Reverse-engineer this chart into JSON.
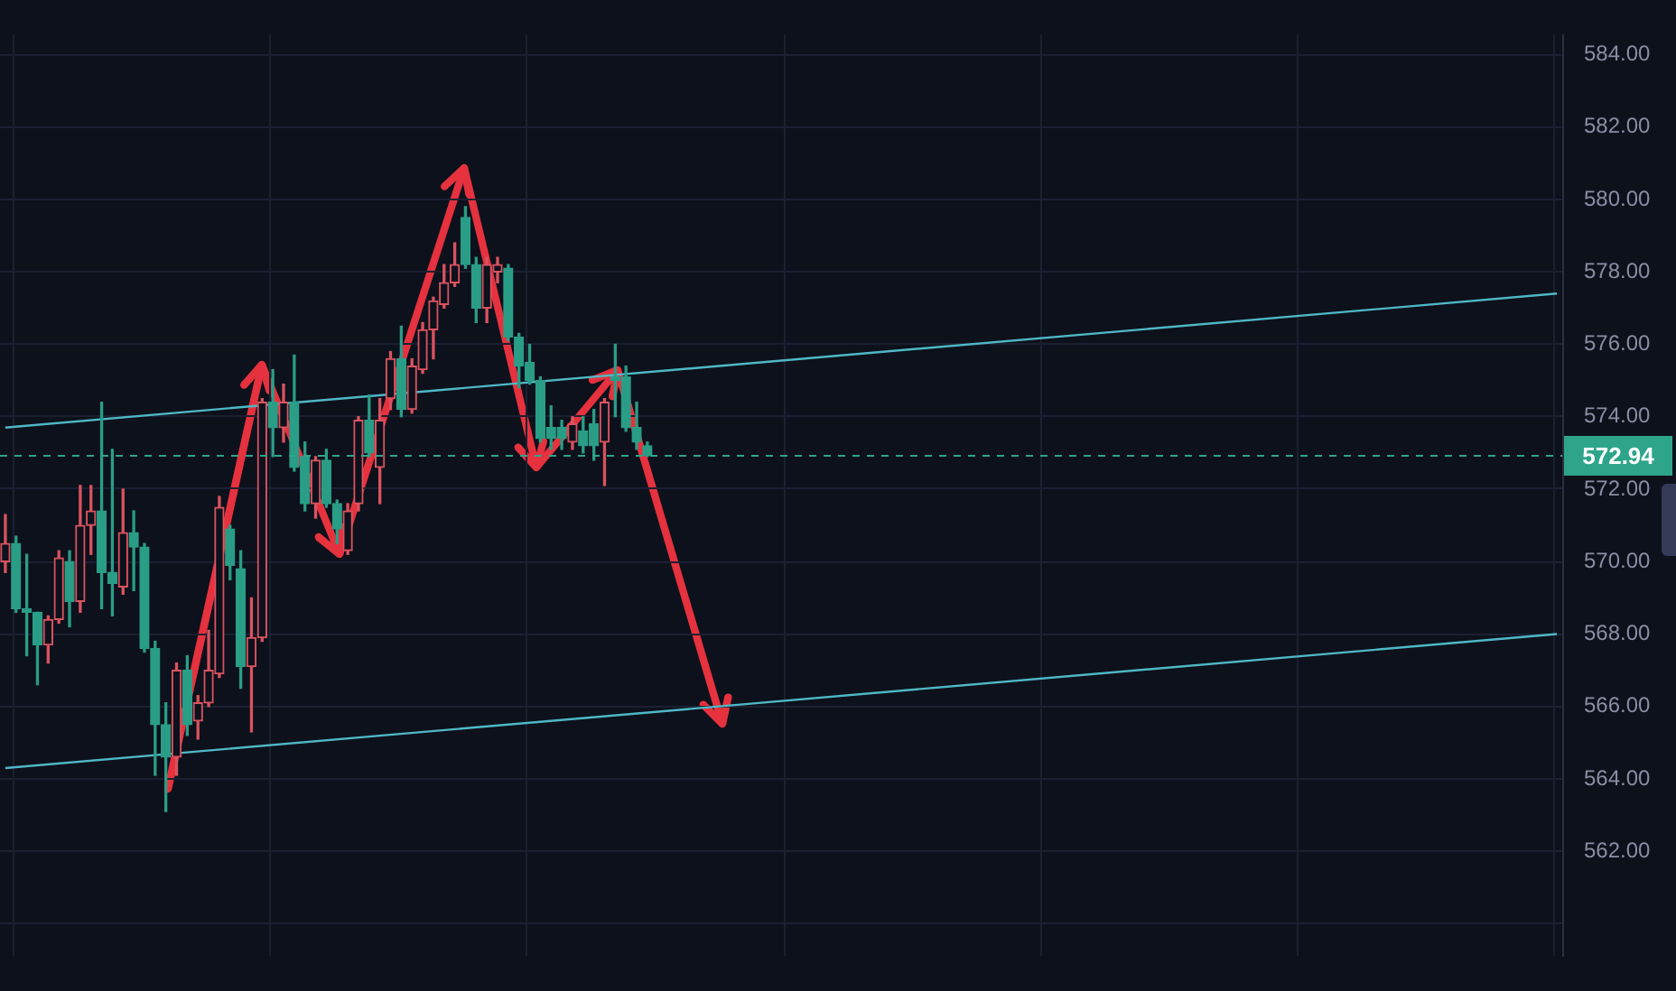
{
  "chart_data": {
    "type": "candlestick",
    "categories": [
      null,
      null,
      null,
      null,
      null,
      null,
      null,
      null,
      null,
      null,
      null,
      null,
      null,
      null,
      null,
      null,
      null,
      null,
      null,
      null,
      null,
      null,
      null,
      null,
      null,
      null,
      null,
      null,
      null,
      null,
      null,
      null,
      null,
      null,
      null,
      null,
      null,
      null,
      null,
      null,
      null,
      null,
      null,
      null,
      null,
      null,
      null,
      null,
      null,
      null,
      null,
      null,
      null,
      null,
      null,
      null,
      null,
      null,
      null,
      null,
      null,
      null,
      null,
      null,
      null,
      null,
      null,
      null,
      null,
      null,
      null,
      null,
      null,
      null,
      null,
      null,
      null,
      null,
      null,
      null,
      null,
      null,
      null,
      null,
      null,
      null,
      null,
      null,
      null,
      null,
      null,
      null,
      null,
      null,
      null,
      null,
      null,
      null,
      null,
      null,
      null,
      null,
      null,
      null,
      null,
      null,
      null,
      null,
      null,
      null,
      null,
      null,
      null,
      null,
      null,
      null,
      null,
      null,
      null,
      null,
      null,
      null,
      null,
      null,
      null,
      null,
      null,
      null,
      null,
      null,
      null,
      null,
      null,
      null,
      null,
      null,
      null,
      null,
      null,
      null,
      null,
      null,
      null,
      null,
      null,
      null
    ],
    "ohlc": [
      [
        570.0,
        571.3,
        569.7,
        570.5
      ],
      [
        570.5,
        570.7,
        568.6,
        568.7
      ],
      [
        568.7,
        570.2,
        567.4,
        568.6
      ],
      [
        568.6,
        568.6,
        566.6,
        567.7
      ],
      [
        567.7,
        568.5,
        567.2,
        568.4
      ],
      [
        568.4,
        570.3,
        568.3,
        570.1
      ],
      [
        570.0,
        570.3,
        568.2,
        568.9
      ],
      [
        568.9,
        572.1,
        568.6,
        571.0
      ],
      [
        571.0,
        572.1,
        570.2,
        571.4
      ],
      [
        571.4,
        574.4,
        568.7,
        569.7
      ],
      [
        569.7,
        573.1,
        568.5,
        569.4
      ],
      [
        569.3,
        572.0,
        569.1,
        570.8
      ],
      [
        570.8,
        571.4,
        569.2,
        570.4
      ],
      [
        570.4,
        570.5,
        567.5,
        567.6
      ],
      [
        567.6,
        567.8,
        564.1,
        565.5
      ],
      [
        565.5,
        566.1,
        563.1,
        564.6
      ],
      [
        564.6,
        567.2,
        564.1,
        567.0
      ],
      [
        567.0,
        567.4,
        565.2,
        565.5
      ],
      [
        565.6,
        566.3,
        565.1,
        566.1
      ],
      [
        566.1,
        568.1,
        566.0,
        567.0
      ],
      [
        566.9,
        571.8,
        566.8,
        571.5
      ],
      [
        570.9,
        571.0,
        569.5,
        569.9
      ],
      [
        569.8,
        570.3,
        566.5,
        567.1
      ],
      [
        567.1,
        569.0,
        565.3,
        567.9
      ],
      [
        567.9,
        574.5,
        567.8,
        574.4
      ],
      [
        574.4,
        575.3,
        572.9,
        573.7
      ],
      [
        573.7,
        574.9,
        573.3,
        574.4
      ],
      [
        574.4,
        575.7,
        572.5,
        572.6
      ],
      [
        572.9,
        573.3,
        571.4,
        571.6
      ],
      [
        571.6,
        572.9,
        571.2,
        572.8
      ],
      [
        572.8,
        573.1,
        571.5,
        571.6
      ],
      [
        571.6,
        571.7,
        570.5,
        570.9
      ],
      [
        570.3,
        571.6,
        570.2,
        571.4
      ],
      [
        571.6,
        574.0,
        571.4,
        573.9
      ],
      [
        573.9,
        574.6,
        572.9,
        573.0
      ],
      [
        572.6,
        574.5,
        571.6,
        573.9
      ],
      [
        574.5,
        575.8,
        574.2,
        575.6
      ],
      [
        575.6,
        576.5,
        574.0,
        574.2
      ],
      [
        574.2,
        575.6,
        574.1,
        575.4
      ],
      [
        575.3,
        576.6,
        575.2,
        576.4
      ],
      [
        576.4,
        577.3,
        575.6,
        577.2
      ],
      [
        577.1,
        578.2,
        577.0,
        577.7
      ],
      [
        577.7,
        578.8,
        577.6,
        578.2
      ],
      [
        579.5,
        579.8,
        578.1,
        578.2
      ],
      [
        578.2,
        578.4,
        576.6,
        577.0
      ],
      [
        577.0,
        578.4,
        576.6,
        578.2
      ],
      [
        578.0,
        578.4,
        577.7,
        578.2
      ],
      [
        578.1,
        578.2,
        576.1,
        576.2
      ],
      [
        576.2,
        576.3,
        574.8,
        575.4
      ],
      [
        575.5,
        576.0,
        574.9,
        575.0
      ],
      [
        575.0,
        575.1,
        573.3,
        573.4
      ],
      [
        573.7,
        574.3,
        573.1,
        573.4
      ],
      [
        573.7,
        573.9,
        573.1,
        573.4
      ],
      [
        573.3,
        574.0,
        573.1,
        573.8
      ],
      [
        573.6,
        574.0,
        573.0,
        573.2
      ],
      [
        573.8,
        574.2,
        572.8,
        573.2
      ],
      [
        573.3,
        574.5,
        572.1,
        574.4
      ],
      [
        575.1,
        576.0,
        574.0,
        575.0
      ],
      [
        575.1,
        575.4,
        573.6,
        573.7
      ],
      [
        573.7,
        574.4,
        573.1,
        573.3
      ],
      [
        573.2,
        573.3,
        572.9,
        572.94
      ],
      null,
      null,
      null,
      null,
      null,
      null,
      null,
      null,
      null,
      null,
      null,
      null,
      null,
      null,
      null,
      null,
      null,
      null,
      null,
      null,
      null,
      null,
      null,
      null,
      null,
      null,
      null,
      null,
      null,
      null,
      null,
      null,
      null,
      null,
      null,
      null,
      null,
      null,
      null,
      null,
      null,
      null,
      null,
      null,
      null,
      null,
      null,
      null,
      null,
      null,
      null,
      null,
      null,
      null,
      null,
      null,
      null,
      null,
      null,
      null,
      null,
      null,
      null,
      null,
      null,
      null,
      null,
      null,
      null,
      null,
      null,
      null,
      null,
      null,
      null,
      null,
      null,
      null,
      null,
      null,
      null,
      null,
      null,
      null,
      null
    ],
    "colors": [
      "#d9535f",
      "#2a9d86",
      "#2a9d86",
      "#2a9d86",
      "#d9535f",
      "#d9535f",
      "#2a9d86",
      "#d9535f",
      "#d9535f",
      "#2a9d86",
      "#2a9d86",
      "#d9535f",
      "#2a9d86",
      "#2a9d86",
      "#2a9d86",
      "#2a9d86",
      "#d9535f",
      "#2a9d86",
      "#d9535f",
      "#d9535f",
      "#d9535f",
      "#2a9d86",
      "#2a9d86",
      "#d9535f",
      "#d9535f",
      "#2a9d86",
      "#d9535f",
      "#2a9d86",
      "#2a9d86",
      "#d9535f",
      "#2a9d86",
      "#2a9d86",
      "#d9535f",
      "#d9535f",
      "#2a9d86",
      "#d9535f",
      "#d9535f",
      "#2a9d86",
      "#d9535f",
      "#d9535f",
      "#d9535f",
      "#d9535f",
      "#d9535f",
      "#2a9d86",
      "#2a9d86",
      "#d9535f",
      "#d9535f",
      "#2a9d86",
      "#2a9d86",
      "#2a9d86",
      "#2a9d86",
      "#2a9d86",
      "#2a9d86",
      "#d9535f",
      "#2a9d86",
      "#2a9d86",
      "#d9535f",
      "#2a9d86",
      "#2a9d86",
      "#2a9d86",
      "#2a9d86",
      null,
      null,
      null,
      null,
      null,
      null,
      null,
      null,
      null,
      null,
      null,
      null,
      null,
      null,
      null,
      null,
      null,
      null,
      null,
      null,
      null,
      null,
      null,
      null,
      null,
      null,
      null,
      null,
      null,
      null,
      null,
      null,
      null,
      null,
      null,
      null,
      null,
      null,
      null,
      null,
      null,
      null,
      null,
      null,
      null,
      null,
      null,
      null,
      null,
      null,
      null,
      null,
      null,
      null,
      null,
      null,
      null,
      null,
      null,
      null,
      null,
      null,
      null,
      null,
      null,
      null,
      null,
      null,
      null,
      null,
      null,
      null,
      null,
      null,
      null,
      null,
      null,
      null,
      null,
      null,
      null,
      null,
      null,
      null,
      null
    ],
    "series": [
      {
        "type": "line",
        "color": "#4fb8c6",
        "values": [
          573.7,
          null,
          null,
          null,
          null,
          null,
          null,
          null,
          null,
          null,
          null,
          null,
          null,
          null,
          null,
          null,
          null,
          null,
          null,
          null,
          null,
          null,
          null,
          null,
          null,
          null,
          null,
          null,
          null,
          null,
          null,
          null,
          null,
          null,
          null,
          null,
          null,
          null,
          null,
          null,
          null,
          null,
          null,
          null,
          null,
          null,
          null,
          null,
          null,
          null,
          null,
          null,
          null,
          null,
          null,
          null,
          null,
          null,
          null,
          null,
          null,
          null,
          null,
          null,
          null,
          null,
          null,
          null,
          null,
          null,
          null,
          null,
          null,
          null,
          null,
          null,
          null,
          null,
          null,
          null,
          null,
          null,
          null,
          null,
          null,
          null,
          null,
          null,
          null,
          null,
          null,
          null,
          null,
          null,
          null,
          null,
          null,
          null,
          null,
          null,
          null,
          null,
          null,
          null,
          null,
          null,
          null,
          null,
          null,
          null,
          null,
          null,
          null,
          null,
          null,
          null,
          null,
          null,
          null,
          null,
          null,
          null,
          null,
          null,
          null,
          null,
          null,
          null,
          null,
          null,
          null,
          null,
          null,
          null,
          null,
          null,
          null,
          null,
          null,
          null,
          null,
          null,
          null,
          null,
          null,
          577.4
        ]
      },
      {
        "type": "line",
        "color": "#4fb8c6",
        "values": [
          564.3,
          null,
          null,
          null,
          null,
          null,
          null,
          null,
          null,
          null,
          null,
          null,
          null,
          null,
          null,
          null,
          null,
          null,
          null,
          null,
          null,
          null,
          null,
          null,
          null,
          null,
          null,
          null,
          null,
          null,
          null,
          null,
          null,
          null,
          null,
          null,
          null,
          null,
          null,
          null,
          null,
          null,
          null,
          null,
          null,
          null,
          null,
          null,
          null,
          null,
          null,
          null,
          null,
          null,
          null,
          null,
          null,
          null,
          null,
          null,
          null,
          null,
          null,
          null,
          null,
          null,
          null,
          null,
          null,
          null,
          null,
          null,
          null,
          null,
          null,
          null,
          null,
          null,
          null,
          null,
          null,
          null,
          null,
          null,
          null,
          null,
          null,
          null,
          null,
          null,
          null,
          null,
          null,
          null,
          null,
          null,
          null,
          null,
          null,
          null,
          null,
          null,
          null,
          null,
          null,
          null,
          null,
          null,
          null,
          null,
          null,
          null,
          null,
          null,
          null,
          null,
          null,
          null,
          null,
          null,
          null,
          null,
          null,
          null,
          null,
          null,
          null,
          null,
          null,
          null,
          null,
          null,
          null,
          null,
          null,
          null,
          null,
          null,
          null,
          null,
          null,
          null,
          null,
          null,
          null,
          568.0
        ]
      }
    ],
    "ylim": [
      559.1,
      584.55
    ],
    "yticks": [
      {
        "value": 560,
        "label": null
      },
      {
        "value": 562,
        "label": "562.00"
      },
      {
        "value": 564,
        "label": "564.00"
      },
      {
        "value": 566,
        "label": "566.00"
      },
      {
        "value": 568,
        "label": "568.00"
      },
      {
        "value": 570,
        "label": "570.00"
      },
      {
        "value": 572,
        "label": "572.00"
      },
      {
        "value": 574,
        "label": "574.00"
      },
      {
        "value": 576,
        "label": "576.00"
      },
      {
        "value": 578,
        "label": "578.00"
      },
      {
        "value": 580,
        "label": "580.00"
      },
      {
        "value": 582,
        "label": "582.00"
      },
      {
        "value": 584,
        "label": "584.00"
      }
    ],
    "ref_lines": [
      {
        "axis": "y",
        "value": 572.94,
        "label": "572.94",
        "color": "#2ea58a",
        "line_style": "dashed"
      }
    ],
    "grid": true,
    "tick_labels": "y"
  }
}
